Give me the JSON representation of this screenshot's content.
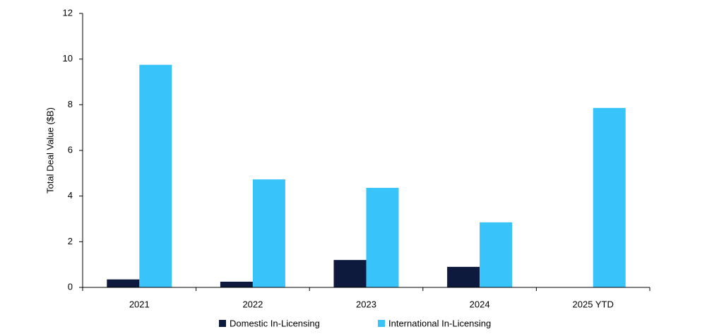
{
  "chart_data": {
    "type": "bar",
    "y_label": "Total Deal Value ($B)",
    "categories": [
      "2021",
      "2022",
      "2023",
      "2024",
      "2025 YTD"
    ],
    "series": [
      {
        "name": "Domestic In-Licensing",
        "color": "#0d1a3d",
        "values": [
          0.35,
          0.25,
          1.2,
          0.9,
          0
        ]
      },
      {
        "name": "International In-Licensing",
        "color": "#38c4fa",
        "values": [
          9.75,
          4.73,
          4.36,
          2.85,
          7.86
        ]
      }
    ],
    "ylim": [
      0,
      12
    ],
    "yticks": [
      0,
      2,
      4,
      6,
      8,
      10,
      12
    ],
    "grid": false,
    "legend": "bottom"
  }
}
